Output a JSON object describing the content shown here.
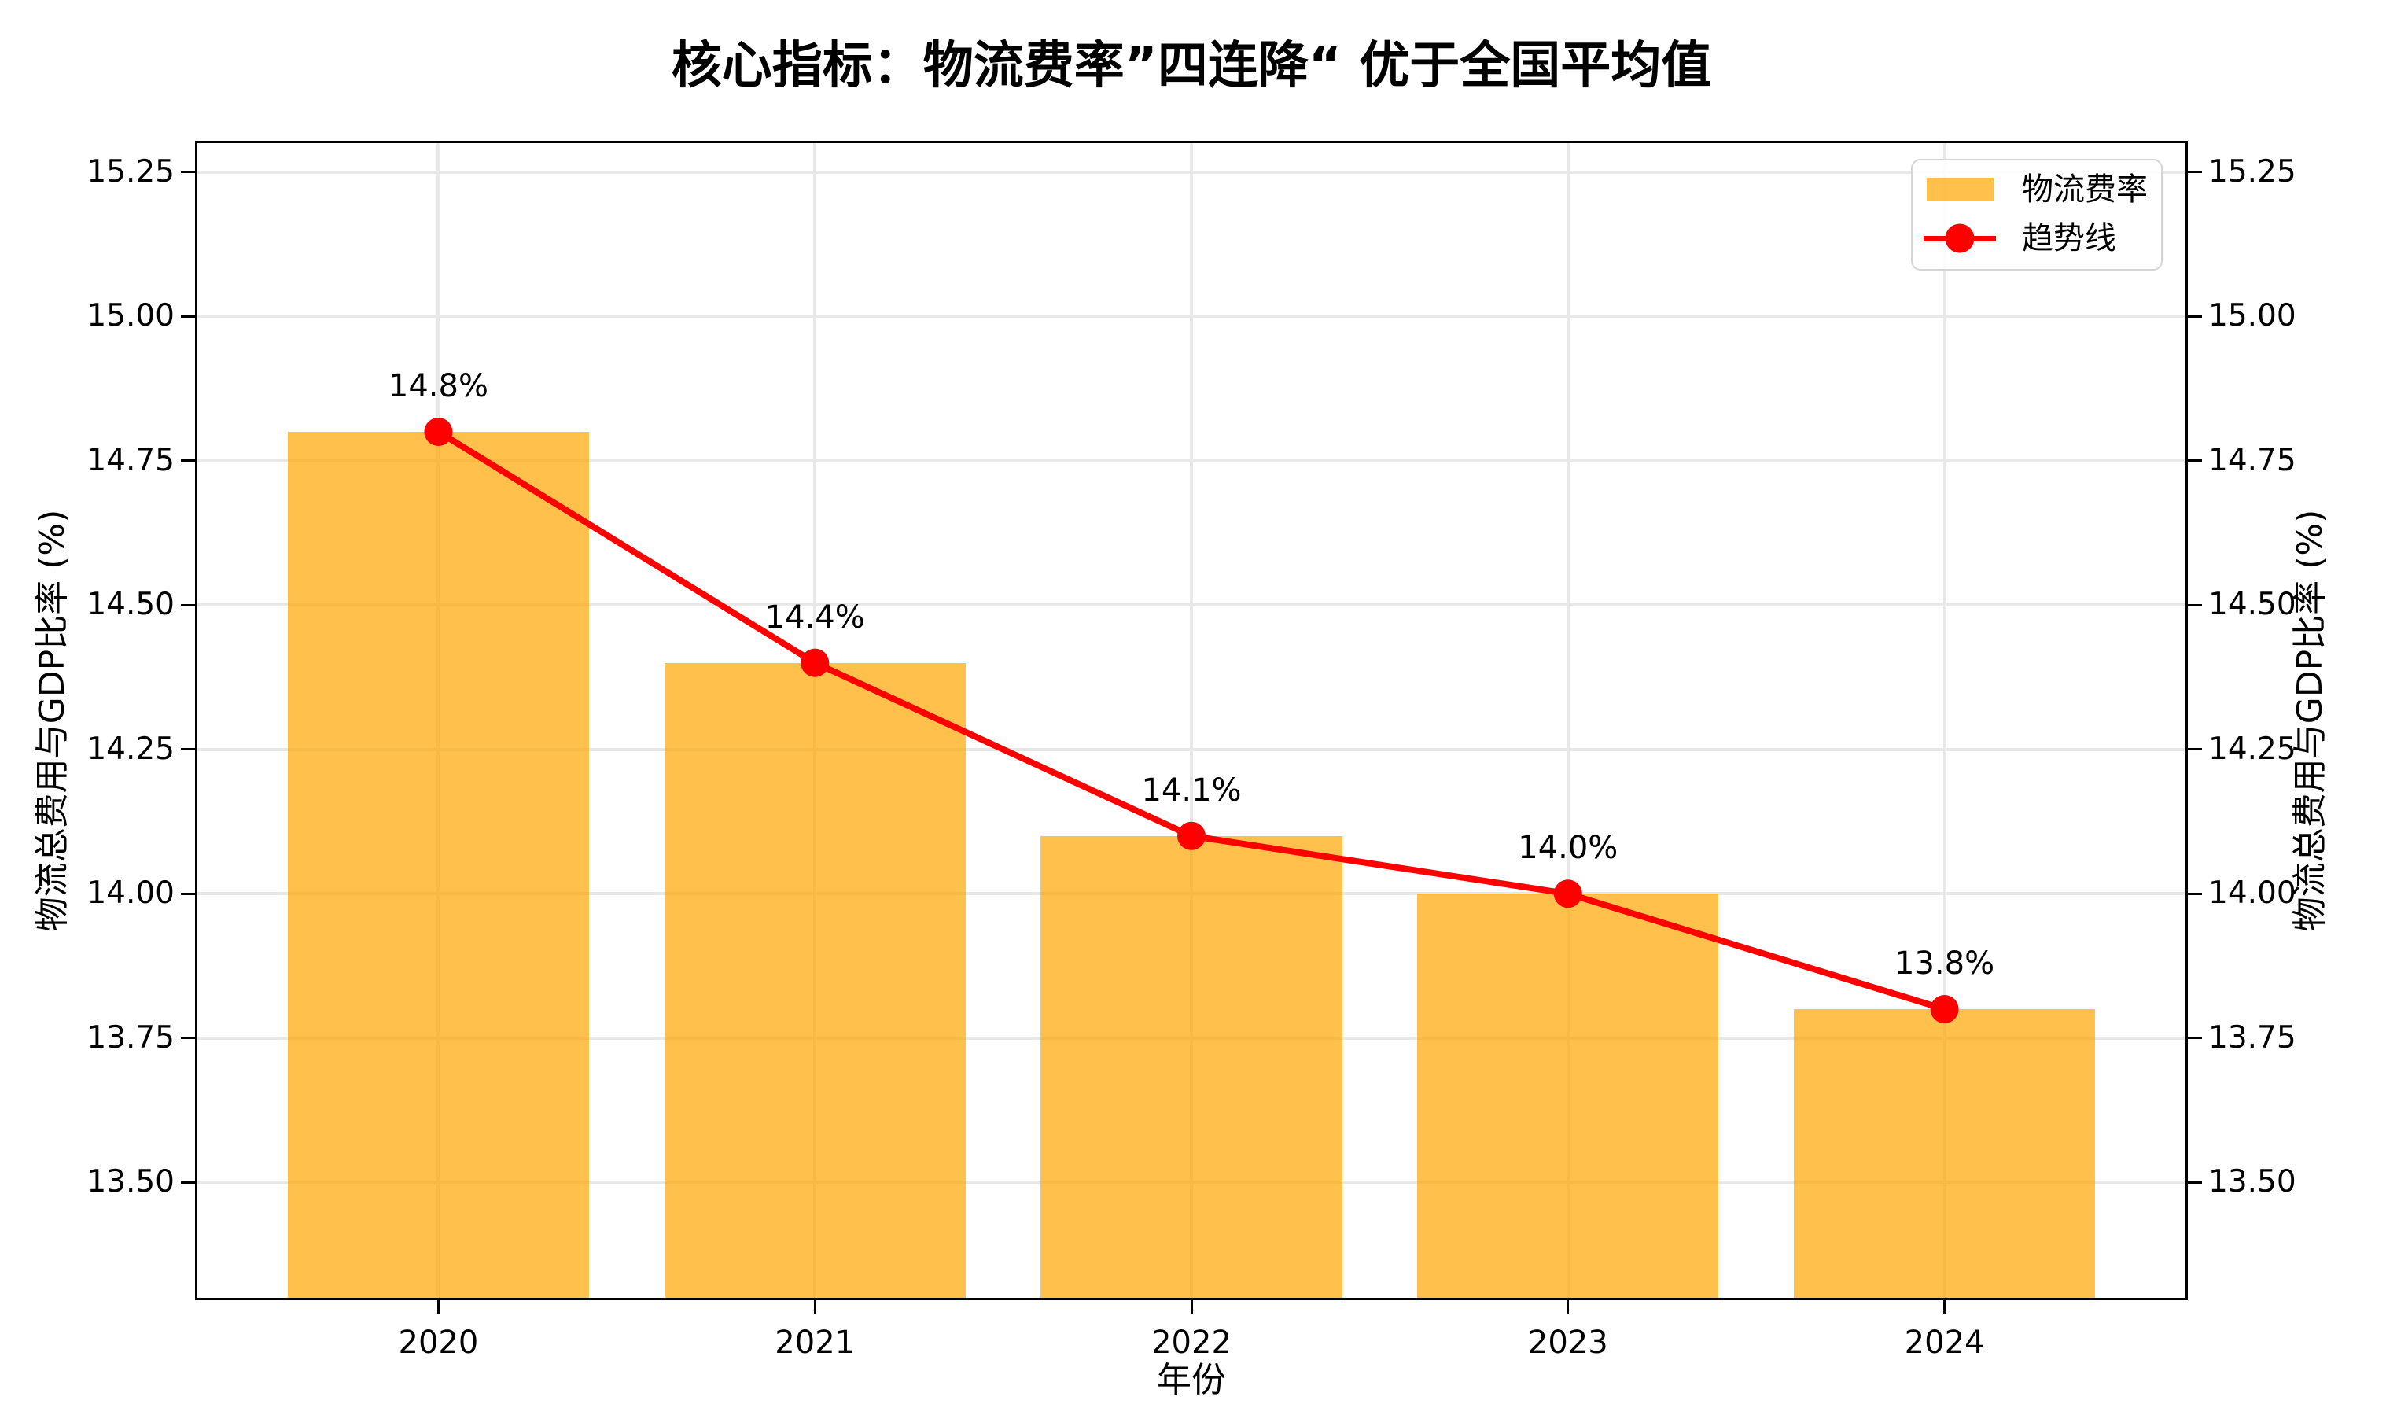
{
  "chart_data": {
    "type": "combo_bar_line",
    "title": "核心指标：物流费率”四连降“ 优于全国平均值",
    "xlabel": "年份",
    "ylabel_left": "物流总费用与GDP比率 (%)",
    "ylabel_right": "物流总费用与GDP比率 (%)",
    "categories": [
      "2020",
      "2021",
      "2022",
      "2023",
      "2024"
    ],
    "series": [
      {
        "name": "物流费率",
        "type": "bar",
        "values": [
          14.8,
          14.4,
          14.1,
          14.0,
          13.8
        ]
      },
      {
        "name": "趋势线",
        "type": "line",
        "values": [
          14.8,
          14.4,
          14.1,
          14.0,
          13.8
        ]
      }
    ],
    "data_labels": [
      "14.8%",
      "14.4%",
      "14.1%",
      "14.0%",
      "13.8%"
    ],
    "ylim": [
      13.3,
      15.3
    ],
    "yticks": [
      15.25,
      15.0,
      14.75,
      14.5,
      14.25,
      14.0,
      13.75,
      13.5
    ],
    "ytick_decimals": 2,
    "grid": true,
    "legend_position": "upper right",
    "colors": {
      "bar": "rgba(255,165,0,0.7)",
      "bar_solid": "#ffc04c",
      "line": "#ff0000",
      "grid": "#e8e8e8",
      "spine": "#000000",
      "legend_border": "#d5d5d5",
      "text": "#000000"
    }
  }
}
